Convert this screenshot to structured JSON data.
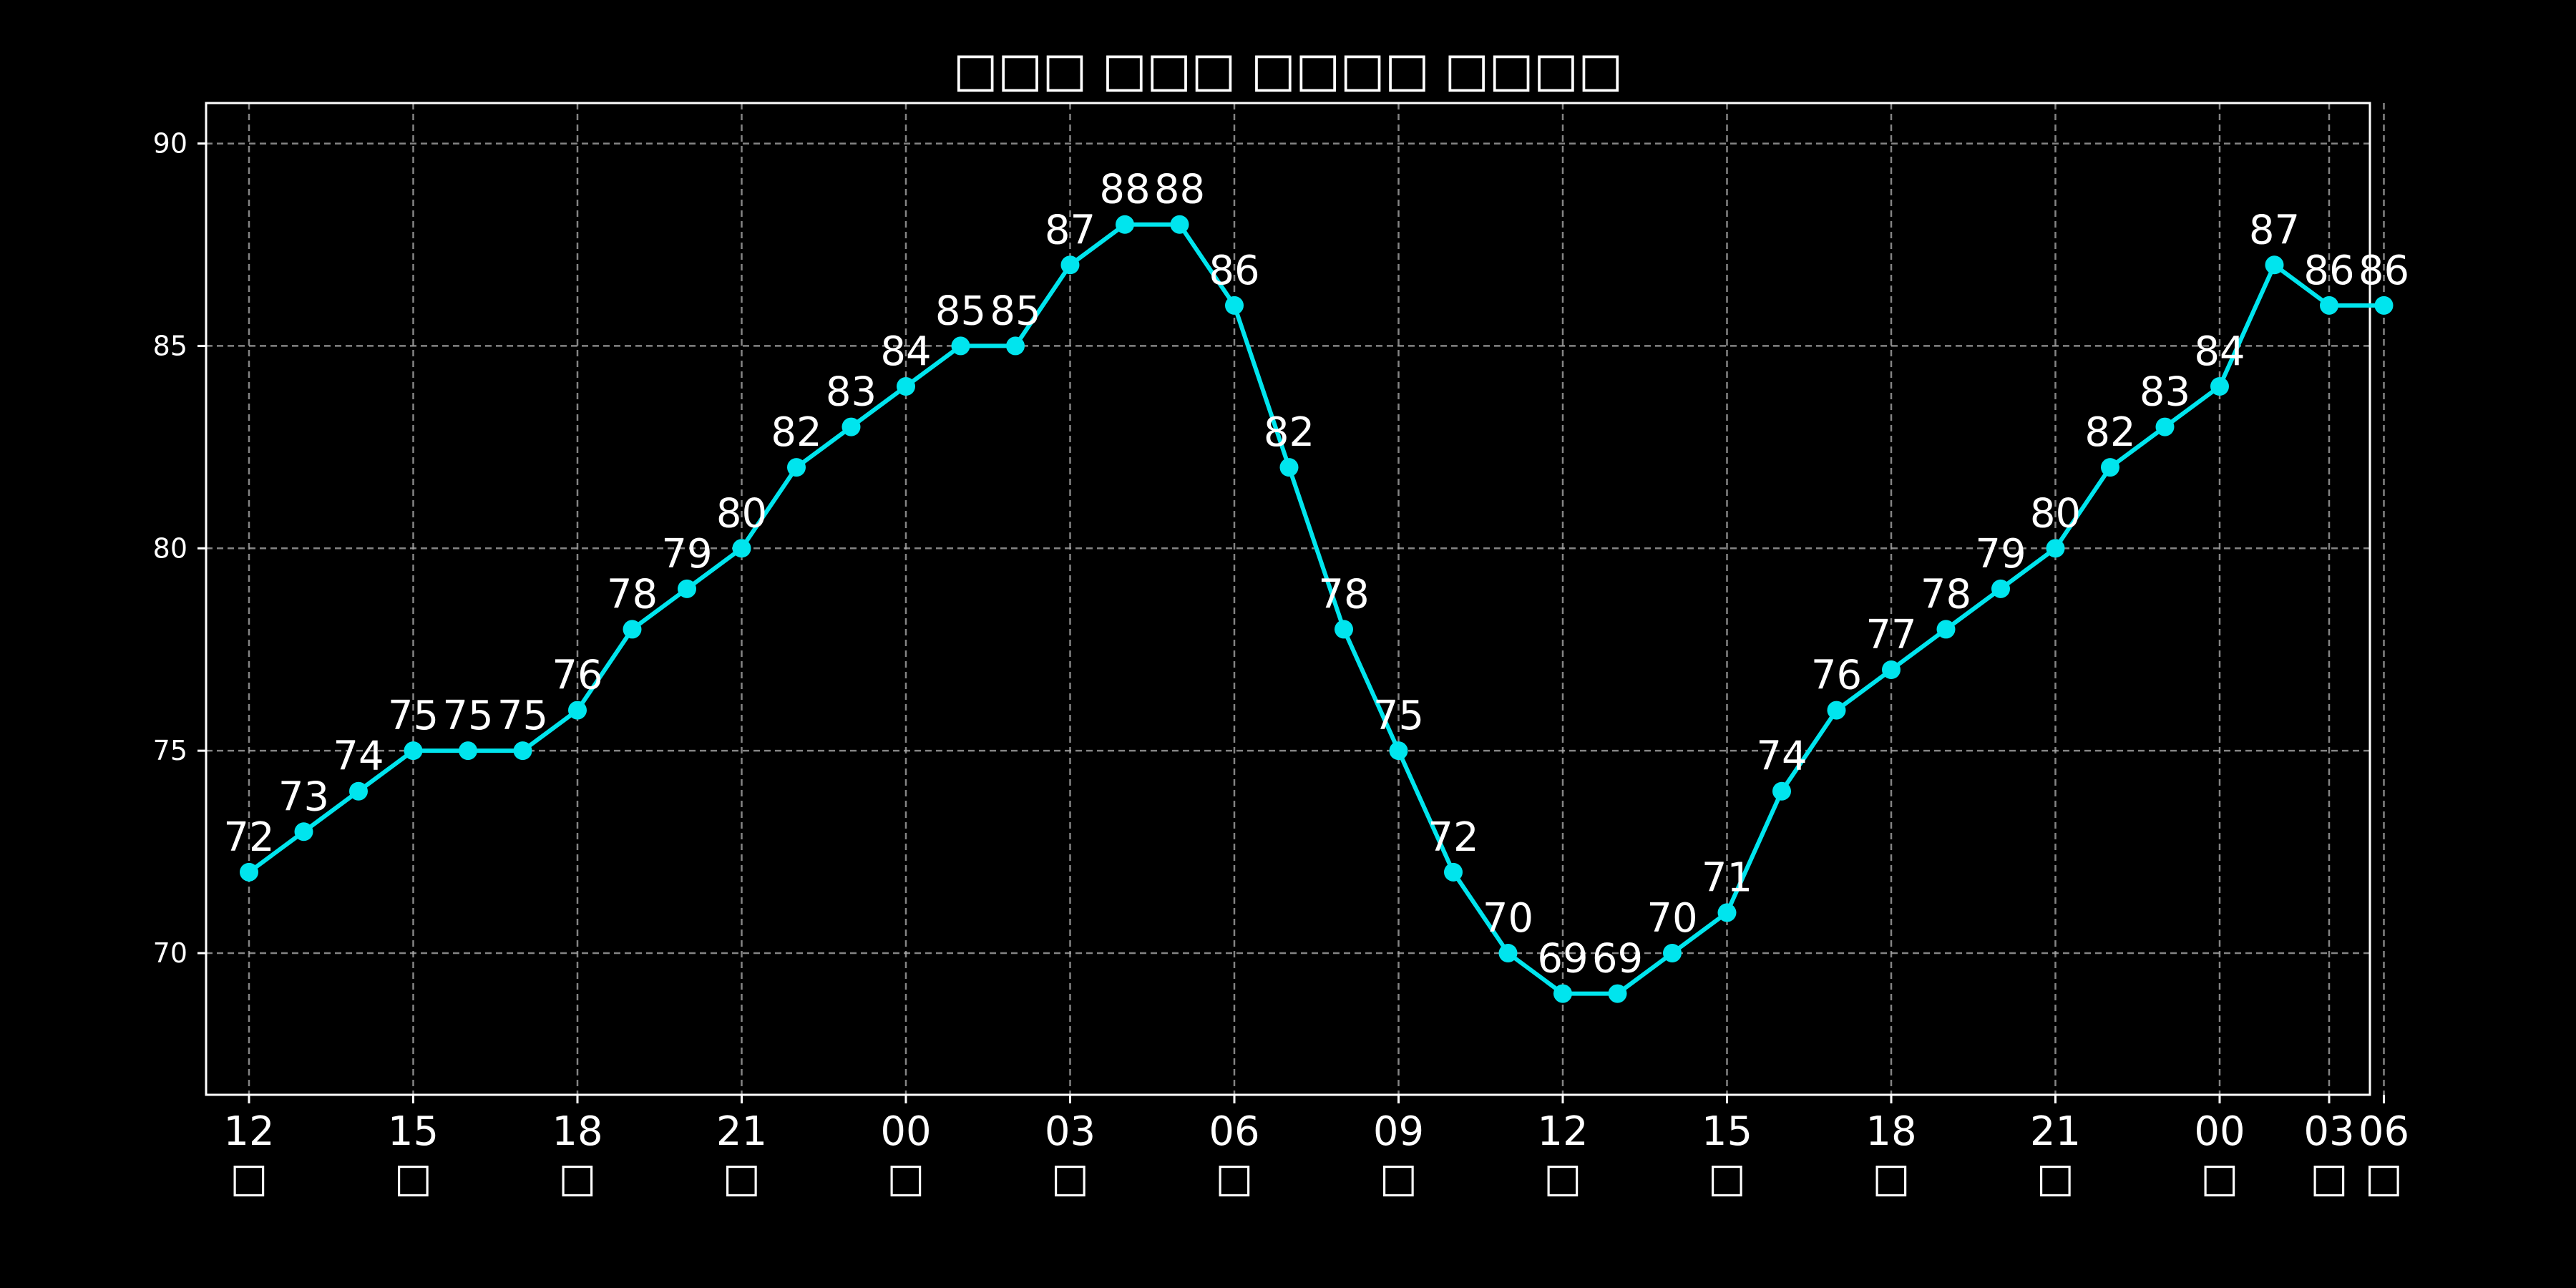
{
  "chart_data": {
    "type": "line",
    "title": "□□□ □□□ □□□□ □□□□",
    "xlabel": "",
    "ylabel": "",
    "ylim": [
      66.5,
      91
    ],
    "yticks": [
      70,
      75,
      80,
      85,
      90
    ],
    "grid": true,
    "x_tick_positions": [
      0,
      3,
      6,
      9,
      12,
      15,
      18,
      21,
      24,
      27,
      30,
      33,
      36,
      38,
      39
    ],
    "x_tick_labels": [
      [
        "12",
        "□"
      ],
      [
        "15",
        "□"
      ],
      [
        "18",
        "□"
      ],
      [
        "21",
        "□"
      ],
      [
        "00",
        "□"
      ],
      [
        "03",
        "□"
      ],
      [
        "06",
        "□"
      ],
      [
        "09",
        "□"
      ],
      [
        "12",
        "□"
      ],
      [
        "15",
        "□"
      ],
      [
        "18",
        "□"
      ],
      [
        "21",
        "□"
      ],
      [
        "00",
        "□"
      ],
      [
        "03",
        "□"
      ],
      [
        "06",
        "□"
      ]
    ],
    "series": [
      {
        "color": "#00e5ee",
        "x": [
          0,
          1,
          2,
          3,
          4,
          5,
          6,
          7,
          8,
          9,
          10,
          11,
          12,
          13,
          14,
          15,
          16,
          17,
          18,
          19,
          20,
          21,
          22,
          23,
          24,
          25,
          26,
          27,
          28,
          29,
          30,
          31,
          32,
          33,
          34,
          35,
          36,
          37,
          38,
          39
        ],
        "values": [
          72,
          73,
          74,
          75,
          75,
          75,
          76,
          78,
          79,
          80,
          82,
          83,
          84,
          85,
          85,
          87,
          88,
          88,
          86,
          82,
          78,
          75,
          72,
          70,
          69,
          69,
          70,
          71,
          74,
          76,
          77,
          78,
          79,
          80,
          82,
          83,
          84,
          87,
          86,
          86
        ]
      }
    ]
  }
}
